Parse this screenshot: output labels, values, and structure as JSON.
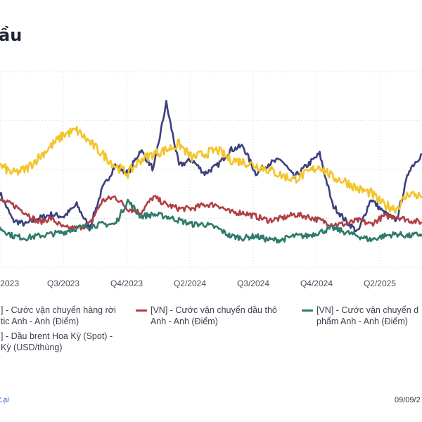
{
  "title": "ầu",
  "footer": {
    "link": "Lại",
    "date": "09/09/2"
  },
  "colors": {
    "dark_blue": "#3c3f7d",
    "red": "#b13f45",
    "green": "#2f7a6a",
    "yellow": "#f2c52b"
  },
  "chart_data": {
    "type": "line",
    "title": "ầu",
    "xlabel": "",
    "ylabel": "",
    "x_ticks": [
      "2023",
      "Q3/2023",
      "Q4/2023",
      "Q2/2024",
      "Q3/2024",
      "Q4/2024",
      "Q2/2025"
    ],
    "ylim": [
      0,
      100
    ],
    "grid": true,
    "legend_position": "bottom",
    "series": [
      {
        "name": "] - Cước vận chuyển hàng rời\ntic Anh - Anh (Điểm)",
        "color": "#3c3f7d",
        "x": [
          0,
          3,
          6,
          9,
          12,
          15,
          18,
          21,
          24,
          27,
          30,
          33,
          36,
          39,
          42,
          45,
          48,
          51,
          54,
          57,
          60,
          63,
          66,
          69,
          72,
          75,
          78,
          81,
          84,
          87,
          90,
          93,
          96,
          99
        ],
        "values": [
          38,
          24,
          22,
          25,
          27,
          26,
          32,
          20,
          40,
          52,
          48,
          60,
          50,
          84,
          52,
          55,
          48,
          52,
          60,
          62,
          48,
          53,
          55,
          46,
          52,
          58,
          32,
          24,
          18,
          35,
          28,
          24,
          50,
          58
        ]
      },
      {
        "name": "[VN] - Cước vận chuyển dầu thô\nAnh - Anh (Điểm)",
        "color": "#b13f45",
        "x": [
          0,
          3,
          6,
          9,
          12,
          15,
          18,
          21,
          24,
          27,
          30,
          33,
          36,
          39,
          42,
          45,
          48,
          51,
          54,
          57,
          60,
          63,
          66,
          69,
          72,
          75,
          78,
          81,
          84,
          87,
          90,
          93,
          96,
          99
        ],
        "values": [
          34,
          32,
          28,
          23,
          25,
          20,
          20,
          22,
          34,
          36,
          30,
          28,
          36,
          32,
          30,
          30,
          32,
          32,
          28,
          28,
          26,
          24,
          25,
          27,
          26,
          24,
          22,
          22,
          24,
          22,
          26,
          26,
          24,
          23
        ]
      },
      {
        "name": "[VN] - Cước vận chuyển d\nphẩm Anh - Anh (Điểm)",
        "color": "#2f7a6a",
        "x": [
          0,
          3,
          6,
          9,
          12,
          15,
          18,
          21,
          24,
          27,
          30,
          33,
          36,
          39,
          42,
          45,
          48,
          51,
          54,
          57,
          60,
          63,
          66,
          69,
          72,
          75,
          78,
          81,
          84,
          87,
          90,
          93,
          96,
          99
        ],
        "values": [
          20,
          16,
          15,
          16,
          17,
          18,
          20,
          21,
          22,
          22,
          34,
          26,
          27,
          26,
          24,
          22,
          22,
          20,
          16,
          15,
          16,
          14,
          14,
          16,
          16,
          18,
          20,
          18,
          16,
          14,
          16,
          17,
          16,
          17
        ]
      },
      {
        "name": "] - Dầu brent Hoa Kỳ (Spot) -\nKỳ (USD/thùng)",
        "color": "#f2c52b",
        "x": [
          0,
          3,
          6,
          9,
          12,
          15,
          18,
          21,
          24,
          27,
          30,
          33,
          36,
          39,
          42,
          45,
          48,
          51,
          54,
          57,
          60,
          63,
          66,
          69,
          72,
          75,
          78,
          81,
          84,
          87,
          90,
          93,
          96,
          99
        ],
        "values": [
          52,
          48,
          50,
          56,
          62,
          68,
          70,
          64,
          58,
          52,
          48,
          55,
          58,
          60,
          63,
          56,
          58,
          60,
          55,
          54,
          52,
          50,
          47,
          45,
          48,
          52,
          46,
          44,
          40,
          38,
          32,
          30,
          38,
          36
        ]
      }
    ]
  }
}
